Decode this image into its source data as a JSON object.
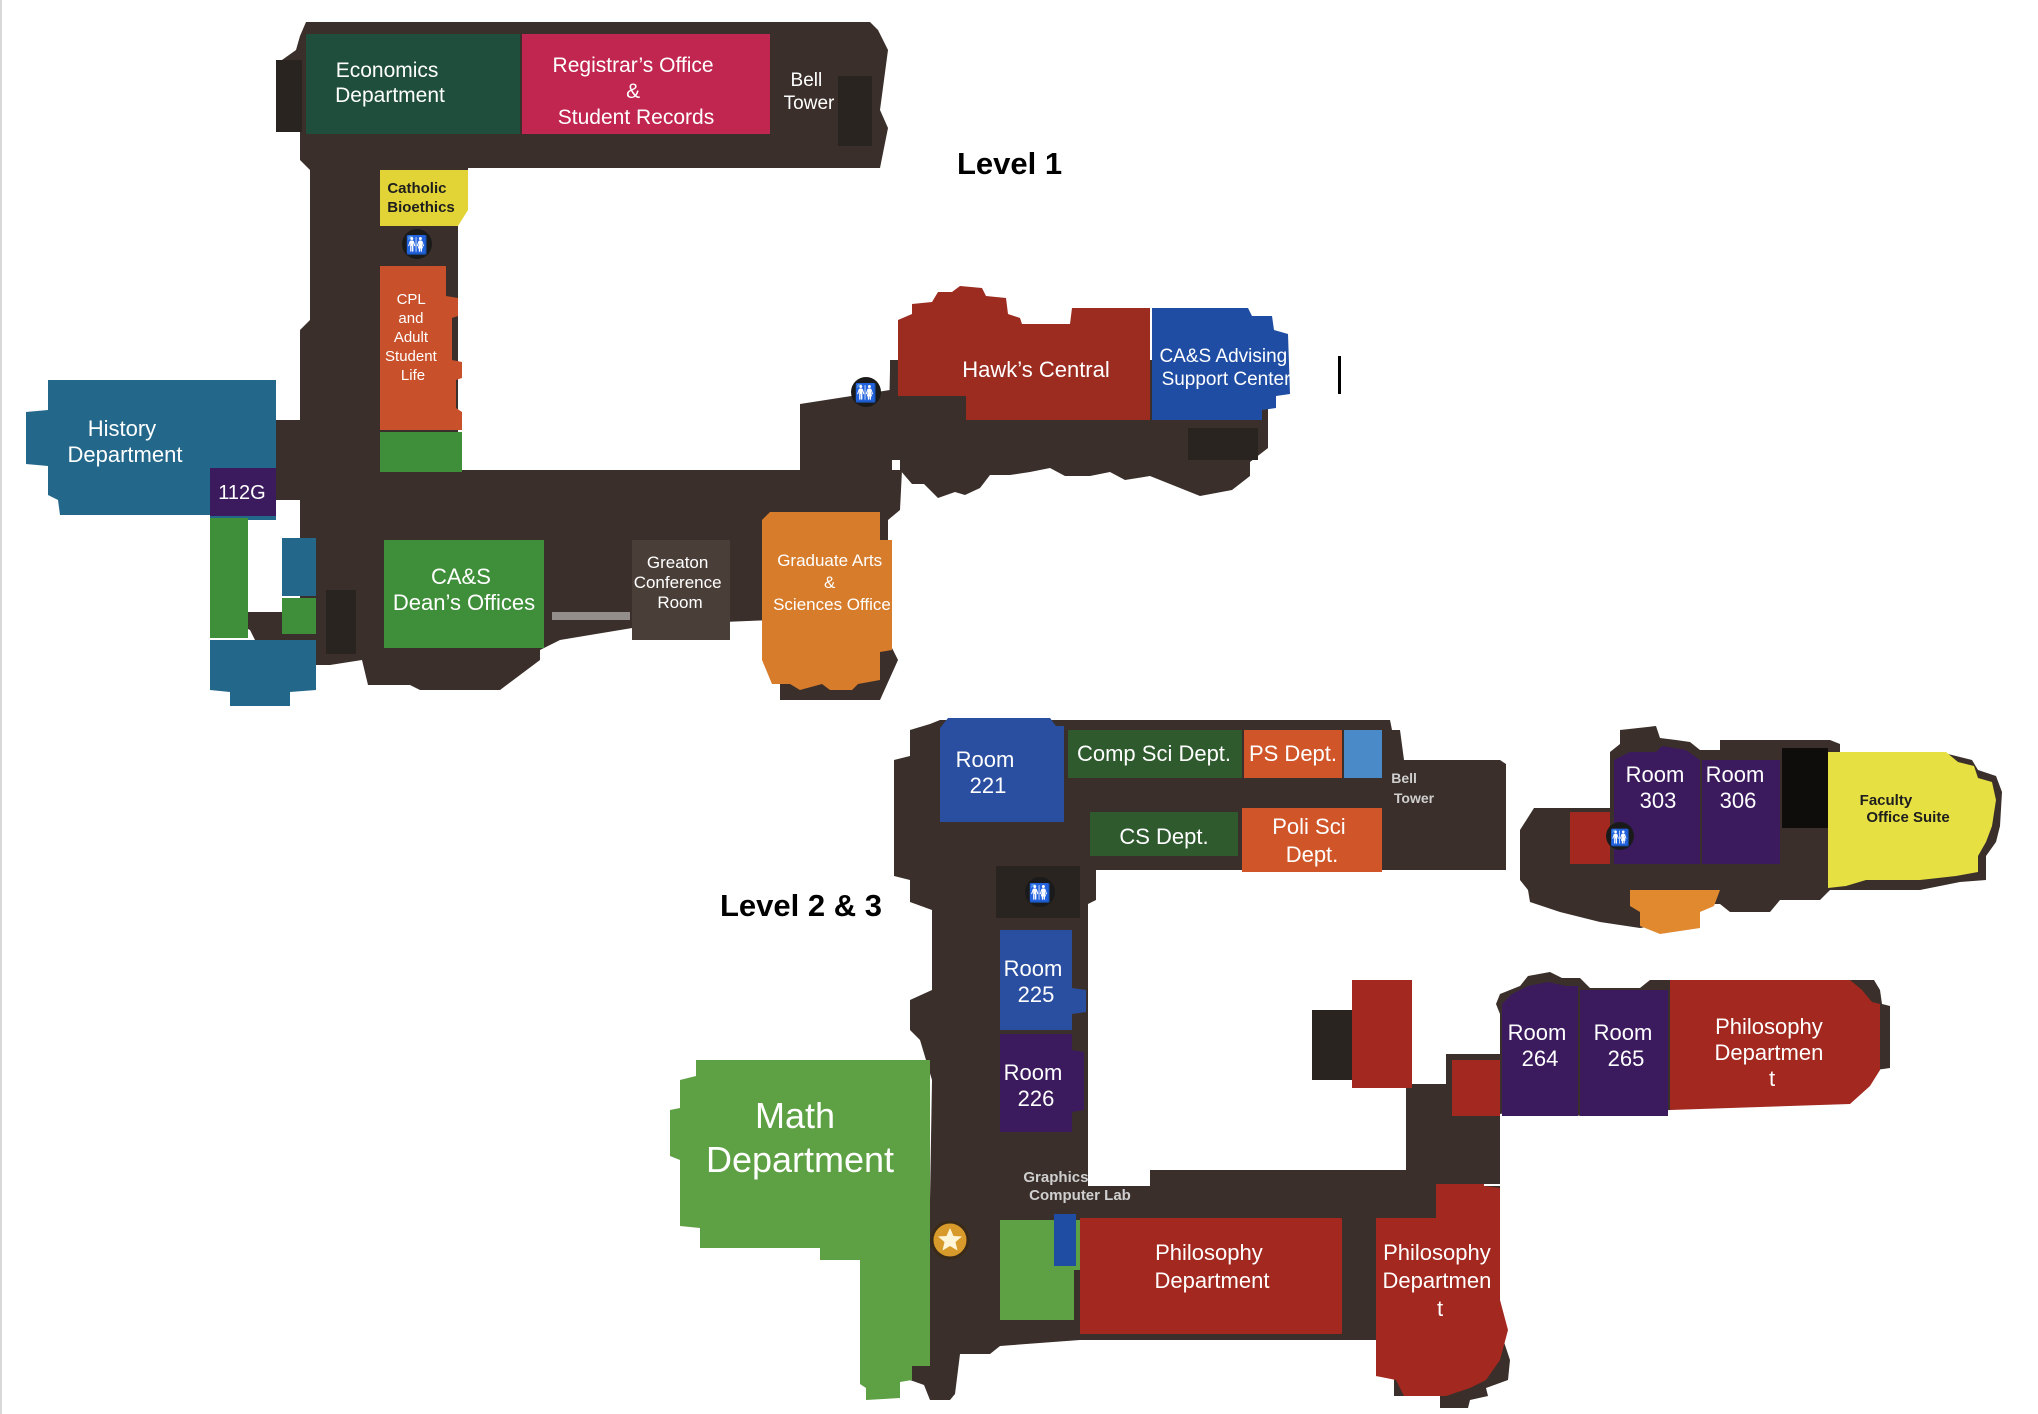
{
  "level1": {
    "title": "Level 1",
    "rooms": {
      "economics": [
        "Economics",
        "Department"
      ],
      "registrar": [
        "Registrar’s Office",
        "&",
        "Student Records"
      ],
      "bell_tower": [
        "Bell",
        "Tower"
      ],
      "catholic_bioethics": [
        "Catholic",
        "Bioethics"
      ],
      "cpl": [
        "CPL",
        "and",
        "Adult",
        "Student",
        "Life"
      ],
      "history": [
        "History",
        "Department"
      ],
      "room_112g": "112G",
      "cas_deans": [
        "CA&S",
        "Dean’s Offices"
      ],
      "greaton": [
        "Greaton",
        "Conference",
        "Room"
      ],
      "graduate": [
        "Graduate Arts",
        "&",
        "Sciences Office"
      ],
      "hawks_central": "Hawk’s Central",
      "cas_advising": [
        "CA&S Advising",
        "Support Center"
      ]
    }
  },
  "level2": {
    "title": "Level 2 & 3",
    "rooms": {
      "room_221": [
        "Room",
        "221"
      ],
      "comp_sci": "Comp Sci Dept.",
      "ps_dept": "PS Dept.",
      "bell_tower": [
        "Bell",
        "Tower"
      ],
      "cs_dept": "CS Dept.",
      "poli_sci": [
        "Poli Sci",
        "Dept."
      ],
      "room_225": [
        "Room",
        "225"
      ],
      "room_226": [
        "Room",
        "226"
      ],
      "math": [
        "Math",
        "Department"
      ],
      "graphics_lab": [
        "Graphics",
        "Computer Lab"
      ],
      "philosophy_center": [
        "Philosophy",
        "Department"
      ],
      "philosophy_right": [
        "Philosophy",
        "Departmen",
        "t"
      ],
      "room_264": [
        "Room",
        "264"
      ],
      "room_265": [
        "Room",
        "265"
      ],
      "philosophy_east": [
        "Philosophy",
        "Departmen",
        "t"
      ],
      "room_303": [
        "Room",
        "303"
      ],
      "room_306": [
        "Room",
        "306"
      ],
      "faculty_suite": [
        "Faculty",
        "Office Suite"
      ]
    }
  },
  "icons": {
    "restroom": "restroom-icon",
    "star": "star-icon"
  },
  "colors": {
    "hall": "#3a2f2a",
    "economics": "#1f4e3c",
    "registrar": "#c0264f",
    "catholic": "#e2d436",
    "cpl": "#c8502a",
    "history": "#23688a",
    "purple": "#3b1b5e",
    "cas_green": "#3f8f3a",
    "greaton": "#4a3e38",
    "graduate": "#d77c2b",
    "hawks_red": "#9c2b20",
    "advising_blue": "#1f4da3",
    "room_blue": "#2a4fa0",
    "compsci_green": "#2e5a2e",
    "ps_orange": "#d0562a",
    "math_green": "#5ea044",
    "philosophy_red": "#a3281f",
    "faculty_yellow": "#e6e042"
  }
}
